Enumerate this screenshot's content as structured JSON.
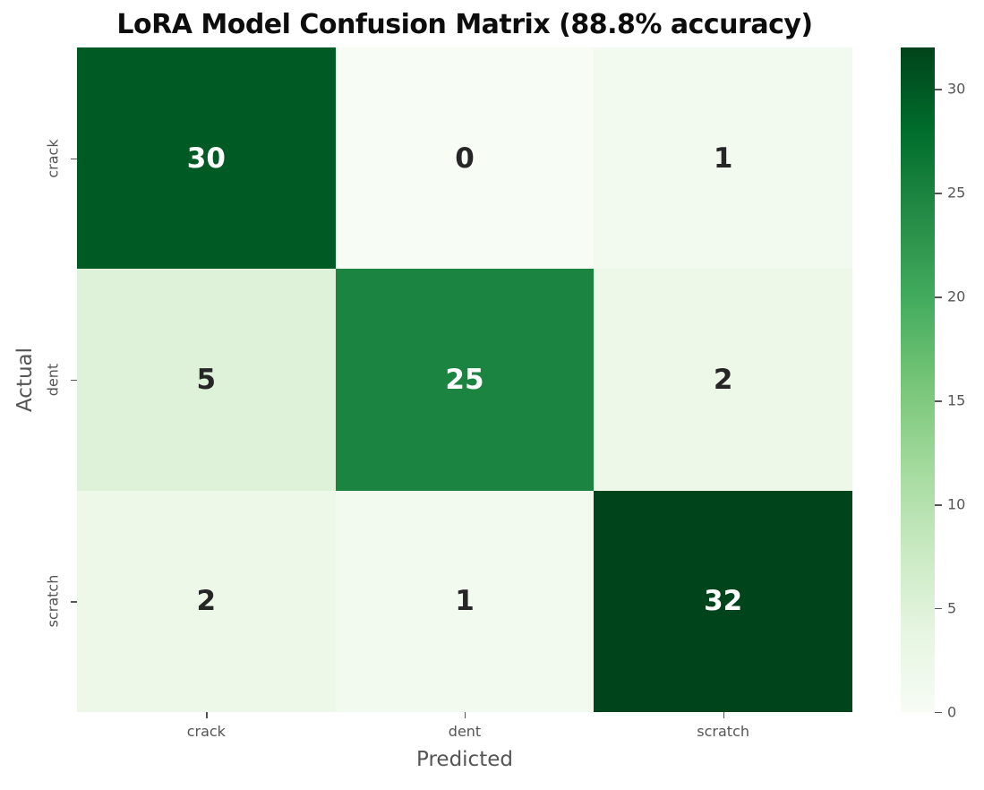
{
  "chart_data": {
    "type": "heatmap",
    "title": "LoRA Model Confusion Matrix (88.8% accuracy)",
    "xlabel": "Predicted",
    "ylabel": "Actual",
    "x_categories": [
      "crack",
      "dent",
      "scratch"
    ],
    "y_categories": [
      "crack",
      "dent",
      "scratch"
    ],
    "values": [
      [
        30,
        0,
        1
      ],
      [
        5,
        25,
        2
      ],
      [
        2,
        1,
        32
      ]
    ],
    "accuracy_percent": 88.8,
    "colormap": "Greens",
    "vmin": 0,
    "vmax": 32,
    "colorbar_ticks": [
      0,
      5,
      10,
      15,
      20,
      25,
      30
    ],
    "colorbar_position": "right",
    "grid": false,
    "cell_colors": [
      [
        "#005a24",
        "#f7fcf5",
        "#f2faef"
      ],
      [
        "#ddf2d8",
        "#1a8440",
        "#edf8e9"
      ],
      [
        "#edf8e9",
        "#f2faef",
        "#00441b"
      ]
    ],
    "cell_text_colors": [
      [
        "#ffffff",
        "#262626",
        "#262626"
      ],
      [
        "#262626",
        "#ffffff",
        "#262626"
      ],
      [
        "#262626",
        "#262626",
        "#ffffff"
      ]
    ],
    "colorbar_gradient_stops": [
      "#f7fcf5",
      "#e5f5e0",
      "#c7e9c0",
      "#a1d99b",
      "#74c476",
      "#41ab5d",
      "#238b45",
      "#006d2c",
      "#00441b"
    ],
    "axis_text_color": "#555555",
    "title_color": "#0d0d0d"
  }
}
